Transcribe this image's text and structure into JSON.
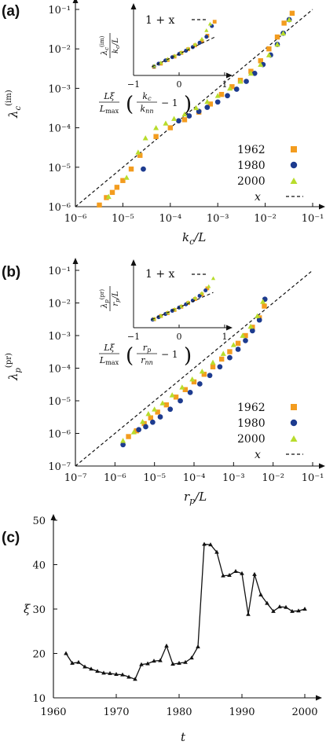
{
  "colors": {
    "c1962": "#f39c1f",
    "c1980": "#1d3b8f",
    "c2000": "#b8dc2c",
    "line": "#111111"
  },
  "panel_labels": [
    "(a)",
    "(b)",
    "(c)"
  ],
  "chart_data": [
    {
      "type": "scatter",
      "panel": "(a)",
      "xlabel": "k_c/L",
      "ylabel": "λ_c^(im)",
      "xscale": "log",
      "yscale": "log",
      "xlim": [
        1e-06,
        0.1
      ],
      "ylim": [
        1e-06,
        0.1
      ],
      "xticks": [
        "10⁻⁶",
        "10⁻⁵",
        "10⁻⁴",
        "10⁻³",
        "10⁻²",
        "10⁻¹"
      ],
      "yticks": [
        "10⁻⁶",
        "10⁻⁵",
        "10⁻⁴",
        "10⁻³",
        "10⁻²",
        "10⁻¹"
      ],
      "legend": [
        "1962",
        "1980",
        "2000",
        "x"
      ],
      "legend_position": "bottom-right",
      "series": [
        {
          "name": "1962",
          "marker": "square",
          "x": [
            3.2e-06,
            4.5e-06,
            6e-06,
            7.5e-06,
            1e-05,
            1.5e-05,
            2.3e-05,
            5e-05,
            0.0001,
            0.0002,
            0.0004,
            0.0007,
            0.0012,
            0.002,
            0.003,
            0.005,
            0.008,
            0.012,
            0.018,
            0.025,
            0.037
          ],
          "y": [
            1.1e-06,
            1.7e-06,
            2.3e-06,
            3.1e-06,
            4.6e-06,
            9e-06,
            2e-05,
            6e-05,
            0.0001,
            0.00016,
            0.00025,
            0.0004,
            0.0007,
            0.0011,
            0.0016,
            0.0027,
            0.005,
            0.01,
            0.02,
            0.045,
            0.08
          ]
        },
        {
          "name": "1980",
          "marker": "circle",
          "x": [
            2.7e-05,
            0.00015,
            0.00025,
            0.0004,
            0.0006,
            0.001,
            0.0016,
            0.0025,
            0.004,
            0.006,
            0.009,
            0.013,
            0.018,
            0.024,
            0.032
          ],
          "y": [
            9e-06,
            0.00015,
            0.0002,
            0.00026,
            0.00033,
            0.00045,
            0.00065,
            0.00095,
            0.0015,
            0.0024,
            0.004,
            0.007,
            0.013,
            0.025,
            0.055
          ]
        },
        {
          "name": "2000",
          "marker": "triangle",
          "x": [
            5e-06,
            1.2e-05,
            2.1e-05,
            3e-05,
            5e-05,
            8e-05,
            0.00012,
            0.0002,
            0.00035,
            0.0006,
            0.001,
            0.0018,
            0.003,
            0.005,
            0.008,
            0.012,
            0.018,
            0.024,
            0.032
          ],
          "y": [
            1.8e-06,
            5.5e-06,
            2.4e-05,
            5.5e-05,
            0.0001,
            0.00013,
            0.00017,
            0.00022,
            0.00032,
            0.00046,
            0.00065,
            0.001,
            0.0015,
            0.0024,
            0.004,
            0.007,
            0.013,
            0.025,
            0.055
          ]
        },
        {
          "name": "x",
          "style": "dashed",
          "x": [
            1e-06,
            0.1
          ],
          "y": [
            1e-06,
            0.1
          ]
        }
      ],
      "inset": {
        "xlabel": "Lξ/L_max (k_c/k_nn − 1)",
        "ylabel": "λ_c^(im) / (k_c/L)",
        "legend": [
          "1 + x"
        ],
        "xlim": [
          -1,
          1
        ],
        "ylim": [
          0,
          3
        ],
        "xticks": [
          "−1",
          "0",
          "1"
        ],
        "series": [
          {
            "name": "1962",
            "x": [
              -0.55,
              -0.4,
              -0.25,
              -0.1,
              0.05,
              0.2,
              0.35,
              0.5,
              0.62,
              0.78
            ],
            "y": [
              0.4,
              0.55,
              0.72,
              0.88,
              1.05,
              1.22,
              1.4,
              1.6,
              1.85,
              2.5
            ]
          },
          {
            "name": "1980",
            "x": [
              -0.55,
              -0.45,
              -0.3,
              -0.15,
              0.0,
              0.15,
              0.3,
              0.45,
              0.6,
              0.72
            ],
            "y": [
              0.42,
              0.55,
              0.7,
              0.85,
              1.0,
              1.15,
              1.32,
              1.52,
              1.8,
              2.3
            ]
          },
          {
            "name": "2000",
            "x": [
              -0.55,
              -0.4,
              -0.25,
              -0.1,
              0.05,
              0.2,
              0.35,
              0.5,
              0.6,
              0.68
            ],
            "y": [
              0.45,
              0.6,
              0.77,
              0.92,
              1.08,
              1.25,
              1.45,
              1.7,
              2.1,
              2.4
            ]
          },
          {
            "name": "1 + x",
            "style": "dashed",
            "x": [
              -0.6,
              0.8
            ],
            "y": [
              0.4,
              1.8
            ]
          }
        ]
      }
    },
    {
      "type": "scatter",
      "panel": "(b)",
      "xlabel": "r_p/L",
      "ylabel": "λ_p^(pr)",
      "xscale": "log",
      "yscale": "log",
      "xlim": [
        1e-07,
        0.1
      ],
      "ylim": [
        1e-07,
        0.1
      ],
      "xticks": [
        "10⁻⁷",
        "10⁻⁶",
        "10⁻⁵",
        "10⁻⁴",
        "10⁻³",
        "10⁻²",
        "10⁻¹"
      ],
      "yticks": [
        "10⁻⁷",
        "10⁻⁶",
        "10⁻⁵",
        "10⁻⁴",
        "10⁻³",
        "10⁻²",
        "10⁻¹"
      ],
      "legend": [
        "1962",
        "1980",
        "2000",
        "x"
      ],
      "legend_position": "bottom-right",
      "series": [
        {
          "name": "1962",
          "marker": "square",
          "x": [
            2.2e-06,
            3.5e-06,
            5.5e-06,
            8e-06,
            1.2e-05,
            2e-05,
            3.5e-05,
            6e-05,
            0.0001,
            0.00018,
            0.0003,
            0.0005,
            0.0008,
            0.0013,
            0.002,
            0.003,
            0.0045,
            0.006
          ],
          "y": [
            8e-07,
            1.2e-06,
            2e-06,
            3e-06,
            4.5e-06,
            7.5e-06,
            1.3e-05,
            2.2e-05,
            3.8e-05,
            6.5e-05,
            0.00011,
            0.00019,
            0.00032,
            0.00058,
            0.001,
            0.0018,
            0.0035,
            0.008
          ]
        },
        {
          "name": "1980",
          "marker": "circle",
          "x": [
            1.6e-06,
            4e-06,
            6e-06,
            9e-06,
            1.4e-05,
            2.5e-05,
            4.5e-05,
            8e-05,
            0.00014,
            0.00025,
            0.00045,
            0.0008,
            0.0013,
            0.002,
            0.003,
            0.0045,
            0.0062
          ],
          "y": [
            4.5e-07,
            1.3e-06,
            1.6e-06,
            2.2e-06,
            3.2e-06,
            5.5e-06,
            1e-05,
            1.8e-05,
            3.3e-05,
            6e-05,
            0.00011,
            0.00021,
            0.00038,
            0.0007,
            0.0014,
            0.003,
            0.013
          ]
        },
        {
          "name": "2000",
          "marker": "triangle",
          "x": [
            1.6e-06,
            3e-06,
            5e-06,
            7e-06,
            1e-05,
            1.6e-05,
            2.8e-05,
            5e-05,
            9e-05,
            0.00016,
            0.0003,
            0.00055,
            0.001,
            0.0017,
            0.0027,
            0.004,
            0.0055
          ],
          "y": [
            6e-07,
            1.1e-06,
            2.3e-06,
            4e-06,
            5.5e-06,
            8.5e-06,
            1.5e-05,
            2.6e-05,
            4.6e-05,
            8e-05,
            0.00015,
            0.00028,
            0.00052,
            0.001,
            0.0019,
            0.004,
            0.011
          ]
        },
        {
          "name": "x",
          "style": "dashed",
          "x": [
            1e-07,
            0.1
          ],
          "y": [
            1e-07,
            0.1
          ]
        }
      ],
      "inset": {
        "xlabel": "Lξ/L_max (r_p/r_nn − 1)",
        "ylabel": "λ_p^(pr) / (r_p/L)",
        "legend": [
          "1 + x"
        ],
        "xlim": [
          -1,
          1
        ],
        "ylim": [
          0,
          3
        ],
        "xticks": [
          "−1",
          "0",
          "1"
        ],
        "series": [
          {
            "name": "1962",
            "x": [
              -0.55,
              -0.4,
              -0.25,
              -0.1,
              0.05,
              0.2,
              0.35,
              0.5,
              0.62
            ],
            "y": [
              0.42,
              0.58,
              0.72,
              0.88,
              1.04,
              1.22,
              1.42,
              1.65,
              1.95
            ]
          },
          {
            "name": "1980",
            "x": [
              -0.58,
              -0.45,
              -0.3,
              -0.15,
              0.0,
              0.15,
              0.3,
              0.45,
              0.58
            ],
            "y": [
              0.4,
              0.52,
              0.68,
              0.84,
              1.0,
              1.16,
              1.35,
              1.58,
              1.85
            ]
          },
          {
            "name": "2000",
            "x": [
              -0.55,
              -0.4,
              -0.25,
              -0.1,
              0.05,
              0.2,
              0.35,
              0.5,
              0.65,
              0.75
            ],
            "y": [
              0.45,
              0.6,
              0.76,
              0.92,
              1.08,
              1.26,
              1.48,
              1.72,
              2.05,
              2.45
            ]
          },
          {
            "name": "1 + x",
            "style": "dashed",
            "x": [
              -0.6,
              0.75
            ],
            "y": [
              0.4,
              1.75
            ]
          }
        ]
      }
    },
    {
      "type": "line",
      "panel": "(c)",
      "xlabel": "t",
      "ylabel": "ξ",
      "xlim": [
        1960,
        2002
      ],
      "ylim": [
        10,
        50
      ],
      "xticks": [
        "1960",
        "1970",
        "1980",
        "1990",
        "2000"
      ],
      "yticks": [
        "10",
        "20",
        "30",
        "40",
        "50"
      ],
      "x": [
        1962,
        1963,
        1964,
        1965,
        1966,
        1967,
        1968,
        1969,
        1970,
        1971,
        1972,
        1973,
        1974,
        1975,
        1976,
        1977,
        1978,
        1979,
        1980,
        1981,
        1982,
        1983,
        1984,
        1985,
        1986,
        1987,
        1988,
        1989,
        1990,
        1991,
        1992,
        1993,
        1994,
        1995,
        1996,
        1997,
        1998,
        1999,
        2000
      ],
      "y": [
        20.0,
        17.8,
        18.0,
        17.0,
        16.5,
        16.0,
        15.6,
        15.5,
        15.3,
        15.2,
        14.7,
        14.2,
        17.5,
        17.7,
        18.3,
        18.4,
        21.7,
        17.6,
        17.8,
        18.0,
        19.0,
        21.5,
        44.6,
        44.5,
        42.8,
        37.5,
        37.6,
        38.5,
        38.0,
        28.8,
        37.8,
        33.2,
        31.3,
        29.5,
        30.5,
        30.4,
        29.5,
        29.6,
        30.0
      ]
    }
  ]
}
